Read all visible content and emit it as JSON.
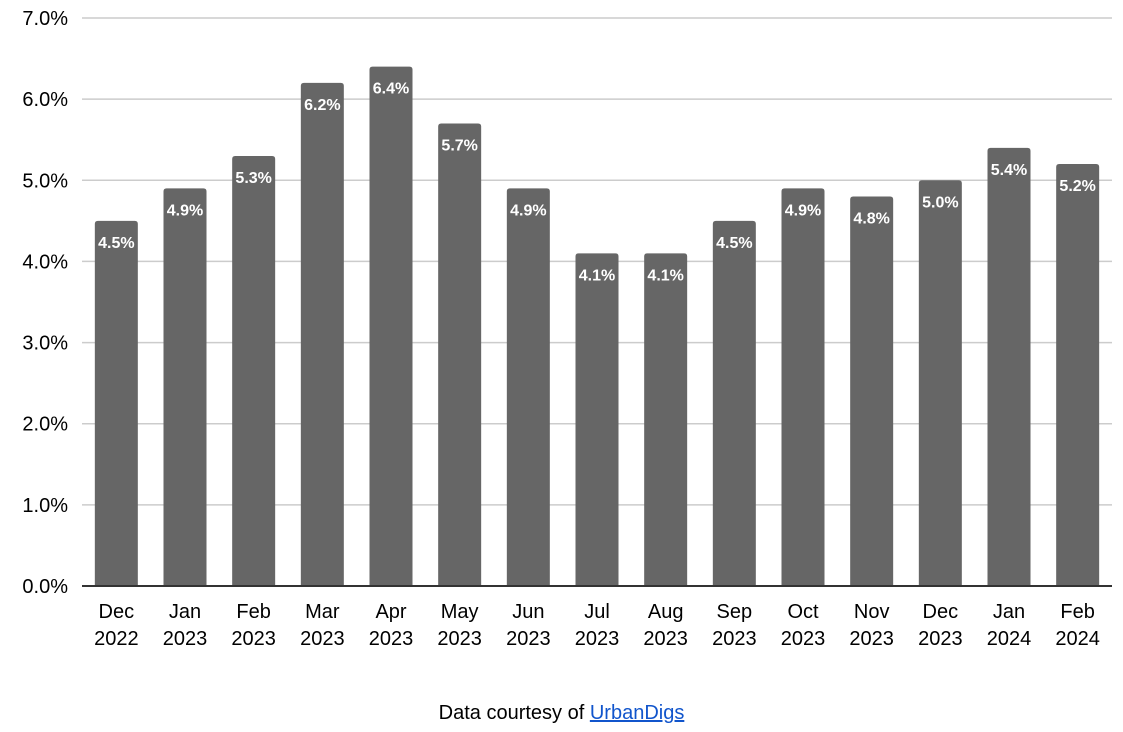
{
  "chart_data": {
    "type": "bar",
    "categories": [
      [
        "Dec",
        "2022"
      ],
      [
        "Jan",
        "2023"
      ],
      [
        "Feb",
        "2023"
      ],
      [
        "Mar",
        "2023"
      ],
      [
        "Apr",
        "2023"
      ],
      [
        "May",
        "2023"
      ],
      [
        "Jun",
        "2023"
      ],
      [
        "Jul",
        "2023"
      ],
      [
        "Aug",
        "2023"
      ],
      [
        "Sep",
        "2023"
      ],
      [
        "Oct",
        "2023"
      ],
      [
        "Nov",
        "2023"
      ],
      [
        "Dec",
        "2023"
      ],
      [
        "Jan",
        "2024"
      ],
      [
        "Feb",
        "2024"
      ]
    ],
    "values": [
      4.5,
      4.9,
      5.3,
      6.2,
      6.4,
      5.7,
      4.9,
      4.1,
      4.1,
      4.5,
      4.9,
      4.8,
      5.0,
      5.4,
      5.2
    ],
    "data_labels": [
      "4.5%",
      "4.9%",
      "5.3%",
      "6.2%",
      "6.4%",
      "5.7%",
      "4.9%",
      "4.1%",
      "4.1%",
      "4.5%",
      "4.9%",
      "4.8%",
      "5.0%",
      "5.4%",
      "5.2%"
    ],
    "ylim": [
      0,
      7
    ],
    "yticks": [
      0,
      1,
      2,
      3,
      4,
      5,
      6,
      7
    ],
    "ytick_labels": [
      "0.0%",
      "1.0%",
      "2.0%",
      "3.0%",
      "4.0%",
      "5.0%",
      "6.0%",
      "7.0%"
    ],
    "grid": true,
    "bar_color": "#666666",
    "label_color": "#ffffff",
    "grid_color": "#cccccc",
    "axis_color": "#333333"
  },
  "footer": {
    "credit_prefix": "Data courtesy of ",
    "credit_link": "UrbanDigs",
    "link_color": "#1155cc"
  }
}
